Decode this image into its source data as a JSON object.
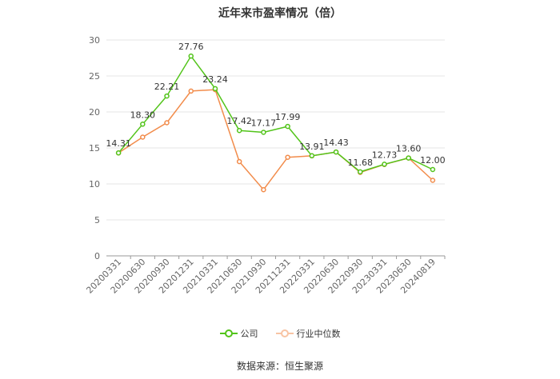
{
  "chart_data": {
    "type": "line",
    "title": "近年来市盈率情况（倍）",
    "categories": [
      "20200331",
      "20200630",
      "20200930",
      "20201231",
      "20210331",
      "20210630",
      "20210930",
      "20211231",
      "20220331",
      "20220630",
      "20220930",
      "20230331",
      "20230630",
      "20240819"
    ],
    "ylim": [
      0,
      30
    ],
    "yticks": [
      0,
      5,
      10,
      15,
      20,
      25,
      30
    ],
    "grid": true,
    "legend_position": "bottom",
    "series": [
      {
        "name": "公司",
        "color": "#52c41a",
        "values": [
          14.31,
          18.3,
          22.21,
          27.76,
          23.24,
          17.42,
          17.17,
          17.99,
          13.91,
          14.43,
          11.68,
          12.73,
          13.6,
          12.0
        ],
        "labels": [
          "14.31",
          "18.30",
          "22.21",
          "27.76",
          "23.24",
          "17.42",
          "17.17",
          "17.99",
          "13.91",
          "14.43",
          "11.68",
          "12.73",
          "13.60",
          "12.00"
        ]
      },
      {
        "name": "行业中位数",
        "color": "#f28c4b",
        "values": [
          14.3,
          16.5,
          18.5,
          22.9,
          23.1,
          13.1,
          9.2,
          13.7,
          13.9,
          14.43,
          11.6,
          12.7,
          13.6,
          10.5
        ]
      }
    ],
    "source": "数据来源：恒生聚源"
  }
}
